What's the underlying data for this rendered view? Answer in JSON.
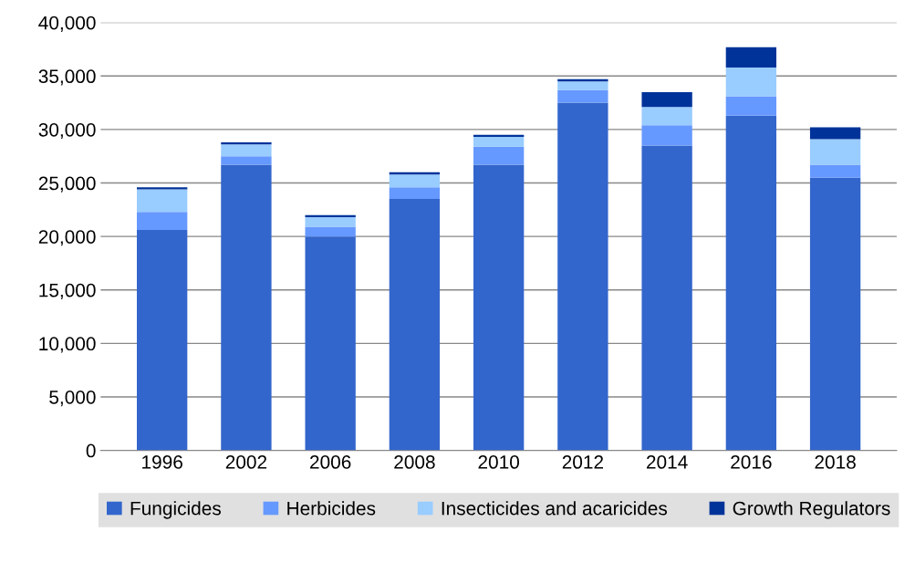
{
  "chart_data": {
    "type": "bar",
    "stacked": true,
    "categories": [
      "1996",
      "2002",
      "2006",
      "2008",
      "2010",
      "2012",
      "2014",
      "2016",
      "2018"
    ],
    "series": [
      {
        "name": "Fungicides",
        "color": "#3366cc",
        "values": [
          20600,
          26700,
          20000,
          23500,
          26700,
          32500,
          28500,
          31300,
          25500
        ]
      },
      {
        "name": "Herbicides",
        "color": "#6699ff",
        "values": [
          1700,
          800,
          900,
          1100,
          1700,
          1200,
          1900,
          1800,
          1200
        ]
      },
      {
        "name": "Insecticides and acaricides",
        "color": "#99ccff",
        "values": [
          2100,
          1100,
          900,
          1200,
          900,
          800,
          1700,
          2700,
          2400
        ]
      },
      {
        "name": "Growth Regulators",
        "color": "#003399",
        "values": [
          200,
          200,
          200,
          200,
          200,
          200,
          1400,
          1900,
          1100
        ]
      }
    ],
    "ylim": [
      0,
      40000
    ],
    "yticks": [
      {
        "value": 0,
        "label": "0"
      },
      {
        "value": 5000,
        "label": "5,000"
      },
      {
        "value": 10000,
        "label": "10,000"
      },
      {
        "value": 15000,
        "label": "15,000"
      },
      {
        "value": 20000,
        "label": "20,000"
      },
      {
        "value": 25000,
        "label": "25,000"
      },
      {
        "value": 30000,
        "label": "30,000"
      },
      {
        "value": 35000,
        "label": "35,000"
      },
      {
        "value": 40000,
        "label": "40,000"
      }
    ],
    "grid": "y",
    "legend": "bottom"
  }
}
